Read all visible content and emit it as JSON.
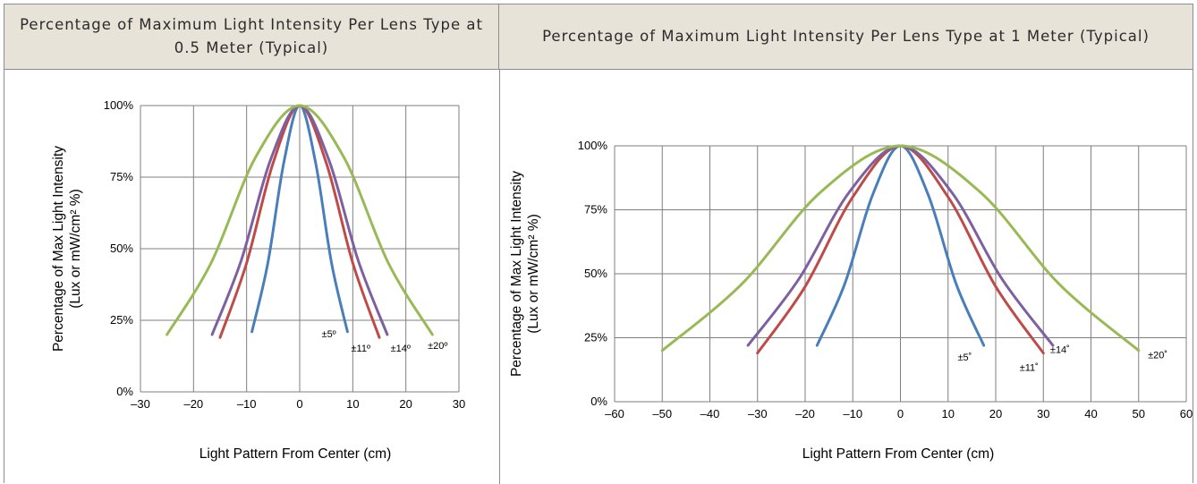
{
  "header": {
    "left_title": "Percentage of Maximum Light Intensity Per Lens Type at 0.5 Meter (Typical)",
    "right_title": "Percentage of Maximum Light Intensity Per Lens Type at 1 Meter (Typical)"
  },
  "colors": {
    "blue": "#4a7ebb",
    "red": "#be4b48",
    "purple": "#7d60a0",
    "green": "#98b954",
    "grid": "#7f7f7f"
  },
  "chart_data": [
    {
      "type": "line",
      "title": "Percentage of Maximum Light Intensity Per Lens Type at 0.5 Meter (Typical)",
      "xlabel": "Light Pattern From Center (cm)",
      "ylabel": [
        "Percentage of Max Light Intensity",
        "(Lux or mW/cm² %)"
      ],
      "xlim": [
        -30,
        30
      ],
      "ylim": [
        0,
        100
      ],
      "xticks": [
        -30,
        -20,
        -10,
        0,
        10,
        20,
        30
      ],
      "xtick_labels": [
        "–30",
        "–20",
        "–10",
        "0",
        "10",
        "20",
        "30"
      ],
      "yticks": [
        0,
        25,
        50,
        75,
        100
      ],
      "ytick_labels": [
        "0%",
        "25%",
        "50%",
        "75%",
        "100%"
      ],
      "grid": true,
      "series": [
        {
          "name": "±5º",
          "color": "#4a7ebb",
          "x": [
            -9,
            -6,
            -3,
            0,
            3,
            6,
            9
          ],
          "y": [
            21,
            45,
            80,
            100,
            80,
            45,
            21
          ],
          "label_x": 5.5,
          "label_y": 19
        },
        {
          "name": "±11º",
          "color": "#be4b48",
          "x": [
            -15,
            -10,
            -5,
            0,
            5,
            10,
            15
          ],
          "y": [
            19,
            45,
            80,
            100,
            80,
            45,
            19
          ],
          "label_x": 11.5,
          "label_y": 14
        },
        {
          "name": "±14º",
          "color": "#7d60a0",
          "x": [
            -16.5,
            -11,
            -5.5,
            0,
            5.5,
            11,
            16.5
          ],
          "y": [
            20,
            46,
            81,
            100,
            81,
            46,
            20
          ],
          "label_x": 19,
          "label_y": 14
        },
        {
          "name": "±20º",
          "color": "#98b954",
          "x": [
            -25,
            -16.7,
            -8.3,
            0,
            8.3,
            16.7,
            25
          ],
          "y": [
            20,
            45,
            82,
            100,
            82,
            45,
            20
          ],
          "label_x": 26,
          "label_y": 15
        }
      ]
    },
    {
      "type": "line",
      "title": "Percentage of Maximum Light Intensity Per Lens Type at 1 Meter (Typical)",
      "xlabel": "Light Pattern From Center (cm)",
      "ylabel": [
        "Percentage of Max Light Intensity",
        "(Lux or mW/cm² %)"
      ],
      "xlim": [
        -60,
        60
      ],
      "ylim": [
        0,
        100
      ],
      "xticks": [
        -60,
        -50,
        -40,
        -30,
        -20,
        -10,
        0,
        10,
        20,
        30,
        40,
        50,
        60
      ],
      "xtick_labels": [
        "–60",
        "–50",
        "–40",
        "–30",
        "–20",
        "–10",
        "0",
        "10",
        "20",
        "30",
        "40",
        "50",
        "60"
      ],
      "yticks": [
        0,
        25,
        50,
        75,
        100
      ],
      "ytick_labels": [
        "0%",
        "25%",
        "50%",
        "75%",
        "100%"
      ],
      "grid": true,
      "series": [
        {
          "name": "±5˚",
          "color": "#4a7ebb",
          "x": [
            -17.5,
            -11.7,
            -5.8,
            0,
            5.8,
            11.7,
            17.5
          ],
          "y": [
            22,
            46,
            81,
            100,
            81,
            46,
            22
          ],
          "label_x": 13.5,
          "label_y": 16
        },
        {
          "name": "±11˚",
          "color": "#be4b48",
          "x": [
            -30,
            -20,
            -10,
            0,
            10,
            20,
            30
          ],
          "y": [
            19,
            45,
            80,
            100,
            80,
            45,
            19
          ],
          "label_x": 27,
          "label_y": 12
        },
        {
          "name": "±14˚",
          "color": "#7d60a0",
          "x": [
            -32,
            -21.3,
            -10.7,
            0,
            10.7,
            21.3,
            32
          ],
          "y": [
            22,
            48,
            82,
            100,
            82,
            48,
            22
          ],
          "label_x": 33.5,
          "label_y": 19
        },
        {
          "name": "±20˚",
          "color": "#98b954",
          "x": [
            -50,
            -33.3,
            -16.7,
            0,
            16.7,
            33.3,
            50
          ],
          "y": [
            20,
            46,
            82,
            100,
            82,
            46,
            20
          ],
          "label_x": 54,
          "label_y": 17
        }
      ]
    }
  ]
}
